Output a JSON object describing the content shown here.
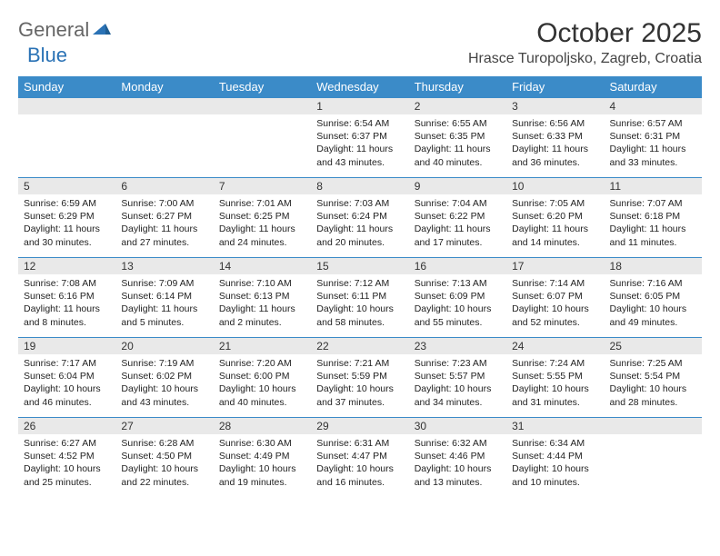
{
  "brand": {
    "part1": "General",
    "part2": "Blue"
  },
  "title": "October 2025",
  "location": "Hrasce Turopoljsko, Zagreb, Croatia",
  "colors": {
    "header_bg": "#3b8bc8",
    "header_text": "#ffffff",
    "daynum_bg": "#e9e9e9",
    "rule": "#3b8bc8",
    "brand_blue": "#2a72b5",
    "brand_gray": "#666666",
    "text": "#222222"
  },
  "weekdays": [
    "Sunday",
    "Monday",
    "Tuesday",
    "Wednesday",
    "Thursday",
    "Friday",
    "Saturday"
  ],
  "weeks": [
    [
      null,
      null,
      null,
      {
        "n": "1",
        "sr": "6:54 AM",
        "ss": "6:37 PM",
        "dl": "11 hours and 43 minutes."
      },
      {
        "n": "2",
        "sr": "6:55 AM",
        "ss": "6:35 PM",
        "dl": "11 hours and 40 minutes."
      },
      {
        "n": "3",
        "sr": "6:56 AM",
        "ss": "6:33 PM",
        "dl": "11 hours and 36 minutes."
      },
      {
        "n": "4",
        "sr": "6:57 AM",
        "ss": "6:31 PM",
        "dl": "11 hours and 33 minutes."
      }
    ],
    [
      {
        "n": "5",
        "sr": "6:59 AM",
        "ss": "6:29 PM",
        "dl": "11 hours and 30 minutes."
      },
      {
        "n": "6",
        "sr": "7:00 AM",
        "ss": "6:27 PM",
        "dl": "11 hours and 27 minutes."
      },
      {
        "n": "7",
        "sr": "7:01 AM",
        "ss": "6:25 PM",
        "dl": "11 hours and 24 minutes."
      },
      {
        "n": "8",
        "sr": "7:03 AM",
        "ss": "6:24 PM",
        "dl": "11 hours and 20 minutes."
      },
      {
        "n": "9",
        "sr": "7:04 AM",
        "ss": "6:22 PM",
        "dl": "11 hours and 17 minutes."
      },
      {
        "n": "10",
        "sr": "7:05 AM",
        "ss": "6:20 PM",
        "dl": "11 hours and 14 minutes."
      },
      {
        "n": "11",
        "sr": "7:07 AM",
        "ss": "6:18 PM",
        "dl": "11 hours and 11 minutes."
      }
    ],
    [
      {
        "n": "12",
        "sr": "7:08 AM",
        "ss": "6:16 PM",
        "dl": "11 hours and 8 minutes."
      },
      {
        "n": "13",
        "sr": "7:09 AM",
        "ss": "6:14 PM",
        "dl": "11 hours and 5 minutes."
      },
      {
        "n": "14",
        "sr": "7:10 AM",
        "ss": "6:13 PM",
        "dl": "11 hours and 2 minutes."
      },
      {
        "n": "15",
        "sr": "7:12 AM",
        "ss": "6:11 PM",
        "dl": "10 hours and 58 minutes."
      },
      {
        "n": "16",
        "sr": "7:13 AM",
        "ss": "6:09 PM",
        "dl": "10 hours and 55 minutes."
      },
      {
        "n": "17",
        "sr": "7:14 AM",
        "ss": "6:07 PM",
        "dl": "10 hours and 52 minutes."
      },
      {
        "n": "18",
        "sr": "7:16 AM",
        "ss": "6:05 PM",
        "dl": "10 hours and 49 minutes."
      }
    ],
    [
      {
        "n": "19",
        "sr": "7:17 AM",
        "ss": "6:04 PM",
        "dl": "10 hours and 46 minutes."
      },
      {
        "n": "20",
        "sr": "7:19 AM",
        "ss": "6:02 PM",
        "dl": "10 hours and 43 minutes."
      },
      {
        "n": "21",
        "sr": "7:20 AM",
        "ss": "6:00 PM",
        "dl": "10 hours and 40 minutes."
      },
      {
        "n": "22",
        "sr": "7:21 AM",
        "ss": "5:59 PM",
        "dl": "10 hours and 37 minutes."
      },
      {
        "n": "23",
        "sr": "7:23 AM",
        "ss": "5:57 PM",
        "dl": "10 hours and 34 minutes."
      },
      {
        "n": "24",
        "sr": "7:24 AM",
        "ss": "5:55 PM",
        "dl": "10 hours and 31 minutes."
      },
      {
        "n": "25",
        "sr": "7:25 AM",
        "ss": "5:54 PM",
        "dl": "10 hours and 28 minutes."
      }
    ],
    [
      {
        "n": "26",
        "sr": "6:27 AM",
        "ss": "4:52 PM",
        "dl": "10 hours and 25 minutes."
      },
      {
        "n": "27",
        "sr": "6:28 AM",
        "ss": "4:50 PM",
        "dl": "10 hours and 22 minutes."
      },
      {
        "n": "28",
        "sr": "6:30 AM",
        "ss": "4:49 PM",
        "dl": "10 hours and 19 minutes."
      },
      {
        "n": "29",
        "sr": "6:31 AM",
        "ss": "4:47 PM",
        "dl": "10 hours and 16 minutes."
      },
      {
        "n": "30",
        "sr": "6:32 AM",
        "ss": "4:46 PM",
        "dl": "10 hours and 13 minutes."
      },
      {
        "n": "31",
        "sr": "6:34 AM",
        "ss": "4:44 PM",
        "dl": "10 hours and 10 minutes."
      },
      null
    ]
  ],
  "labels": {
    "sunrise": "Sunrise: ",
    "sunset": "Sunset: ",
    "daylight": "Daylight: "
  }
}
